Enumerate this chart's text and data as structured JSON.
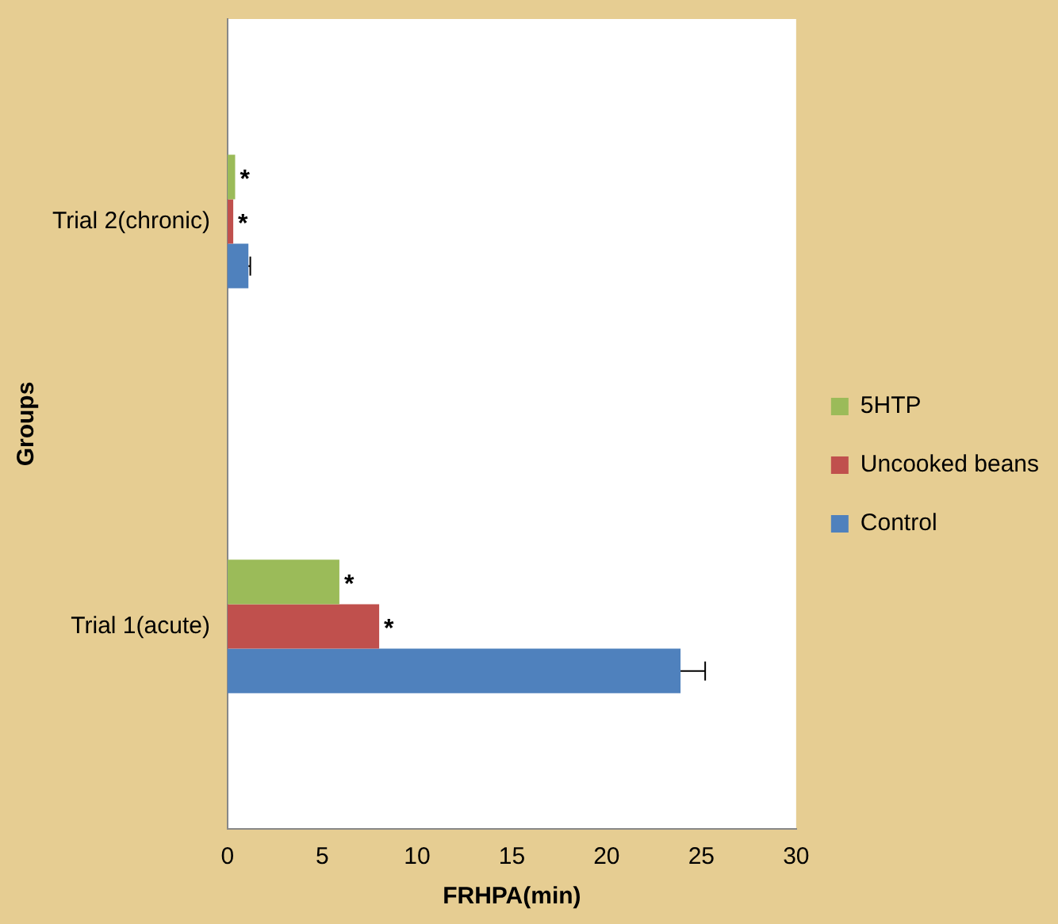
{
  "chart_data": {
    "type": "bar",
    "orientation": "horizontal",
    "xlabel": "FRHPA(min)",
    "ylabel": "Groups",
    "categories": [
      "Trial 2(chronic)",
      "Trial 1(acute)"
    ],
    "series": [
      {
        "name": "5HTP",
        "color": "#9bbb59",
        "values": [
          0.4,
          5.9
        ],
        "value_labels": [
          "*",
          "*"
        ]
      },
      {
        "name": "Uncooked beans",
        "color": "#c0504d",
        "values": [
          0.3,
          8.0
        ],
        "value_labels": [
          "*",
          "*"
        ]
      },
      {
        "name": "Control",
        "color": "#4f81bd",
        "values": [
          1.1,
          23.9
        ],
        "errors": [
          [
            1.1,
            1.2
          ],
          [
            23.9,
            25.2
          ]
        ]
      }
    ],
    "xlim": [
      0,
      30
    ],
    "xticks": [
      0,
      5,
      10,
      15,
      20,
      25,
      30
    ],
    "grid": false,
    "legend": "right"
  }
}
